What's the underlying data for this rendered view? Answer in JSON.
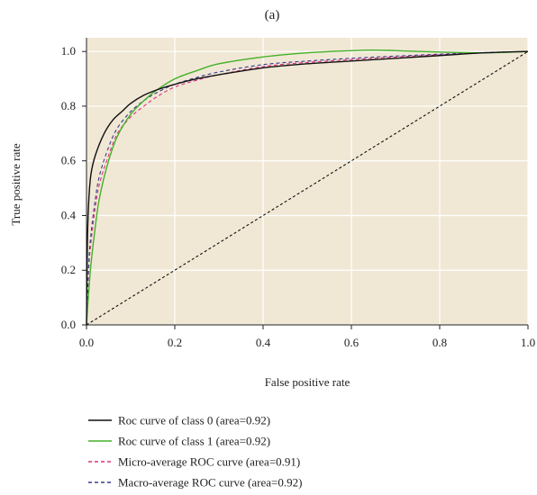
{
  "chart_data": {
    "type": "line",
    "panel_label": "(a)",
    "title": "",
    "xlabel": "False positive rate",
    "ylabel": "True positive rate",
    "xlim": [
      0.0,
      1.0
    ],
    "ylim": [
      0.0,
      1.05
    ],
    "xticks": [
      "0.0",
      "0.2",
      "0.4",
      "0.6",
      "0.8",
      "1.0"
    ],
    "yticks": [
      "0.0",
      "0.2",
      "0.4",
      "0.6",
      "0.8",
      "1.0"
    ],
    "grid": true,
    "background_color": "#f0e8d5",
    "grid_color": "#ffffff",
    "legend_position": "below",
    "series": [
      {
        "name": "Roc curve of class 0 (area=0.92)",
        "color": "#111111",
        "dash": "solid",
        "x": [
          0.0,
          0.002,
          0.005,
          0.01,
          0.02,
          0.04,
          0.06,
          0.08,
          0.1,
          0.13,
          0.16,
          0.2,
          0.25,
          0.3,
          0.4,
          0.5,
          0.6,
          0.7,
          0.8,
          0.9,
          1.0
        ],
        "y": [
          0.0,
          0.3,
          0.45,
          0.55,
          0.62,
          0.7,
          0.75,
          0.78,
          0.81,
          0.84,
          0.86,
          0.88,
          0.9,
          0.915,
          0.94,
          0.955,
          0.965,
          0.975,
          0.985,
          0.995,
          1.0
        ]
      },
      {
        "name": "Roc curve of class 1 (area=0.92)",
        "color": "#44b02a",
        "dash": "solid",
        "x": [
          0.0,
          0.005,
          0.01,
          0.02,
          0.03,
          0.05,
          0.07,
          0.1,
          0.13,
          0.16,
          0.2,
          0.25,
          0.3,
          0.4,
          0.5,
          0.6,
          0.65,
          0.7,
          0.8,
          0.9,
          1.0
        ],
        "y": [
          0.0,
          0.12,
          0.22,
          0.36,
          0.47,
          0.6,
          0.69,
          0.77,
          0.82,
          0.86,
          0.9,
          0.93,
          0.955,
          0.98,
          0.995,
          1.003,
          1.005,
          1.003,
          0.998,
          0.995,
          1.0
        ]
      },
      {
        "name": "Micro-average ROC curve (area=0.91)",
        "color": "#e0307e",
        "dash": "dashed",
        "x": [
          0.0,
          0.005,
          0.01,
          0.02,
          0.03,
          0.05,
          0.07,
          0.1,
          0.13,
          0.16,
          0.2,
          0.25,
          0.3,
          0.4,
          0.5,
          0.6,
          0.7,
          0.8,
          0.9,
          1.0
        ],
        "y": [
          0.0,
          0.2,
          0.3,
          0.43,
          0.52,
          0.62,
          0.7,
          0.76,
          0.8,
          0.835,
          0.87,
          0.895,
          0.915,
          0.945,
          0.96,
          0.97,
          0.98,
          0.988,
          0.995,
          1.0
        ]
      },
      {
        "name": "Macro-average ROC curve (area=0.92)",
        "color": "#3a3a8c",
        "dash": "dashed",
        "x": [
          0.0,
          0.005,
          0.01,
          0.02,
          0.03,
          0.05,
          0.07,
          0.1,
          0.13,
          0.16,
          0.2,
          0.25,
          0.3,
          0.4,
          0.5,
          0.6,
          0.7,
          0.8,
          0.9,
          1.0
        ],
        "y": [
          0.0,
          0.22,
          0.33,
          0.46,
          0.55,
          0.65,
          0.72,
          0.78,
          0.82,
          0.85,
          0.88,
          0.905,
          0.925,
          0.952,
          0.965,
          0.975,
          0.983,
          0.99,
          0.996,
          1.0
        ]
      },
      {
        "name": "",
        "color": "#111111",
        "dash": "dotted",
        "x": [
          0.0,
          1.0
        ],
        "y": [
          0.0,
          1.0
        ]
      }
    ]
  }
}
